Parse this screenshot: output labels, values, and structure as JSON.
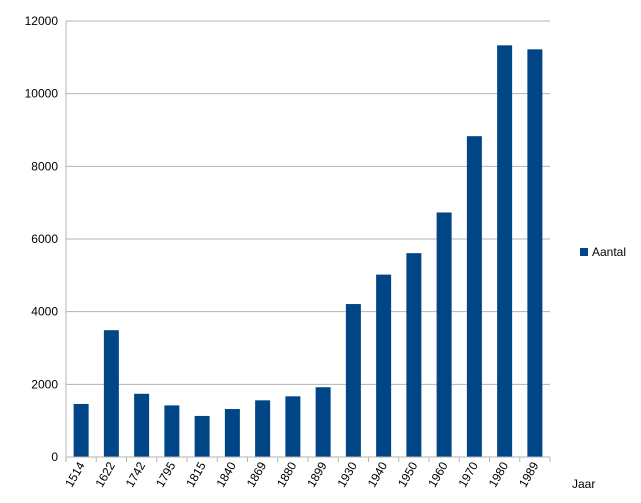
{
  "chart_data": {
    "type": "bar",
    "categories": [
      "1514",
      "1622",
      "1742",
      "1795",
      "1815",
      "1840",
      "1869",
      "1880",
      "1899",
      "1930",
      "1940",
      "1950",
      "1960",
      "1970",
      "1980",
      "1989"
    ],
    "series": [
      {
        "name": "Aantal",
        "color": "#004586",
        "values": [
          1460,
          3490,
          1740,
          1420,
          1130,
          1320,
          1560,
          1670,
          1920,
          4210,
          5020,
          5610,
          6730,
          8830,
          11330,
          11220
        ]
      }
    ],
    "xlabel": "Jaar",
    "ylabel": "",
    "ylim": [
      0,
      12000
    ],
    "yticks": [
      0,
      2000,
      4000,
      6000,
      8000,
      10000,
      12000
    ],
    "grid": "horizontal",
    "legend_position": "right"
  }
}
